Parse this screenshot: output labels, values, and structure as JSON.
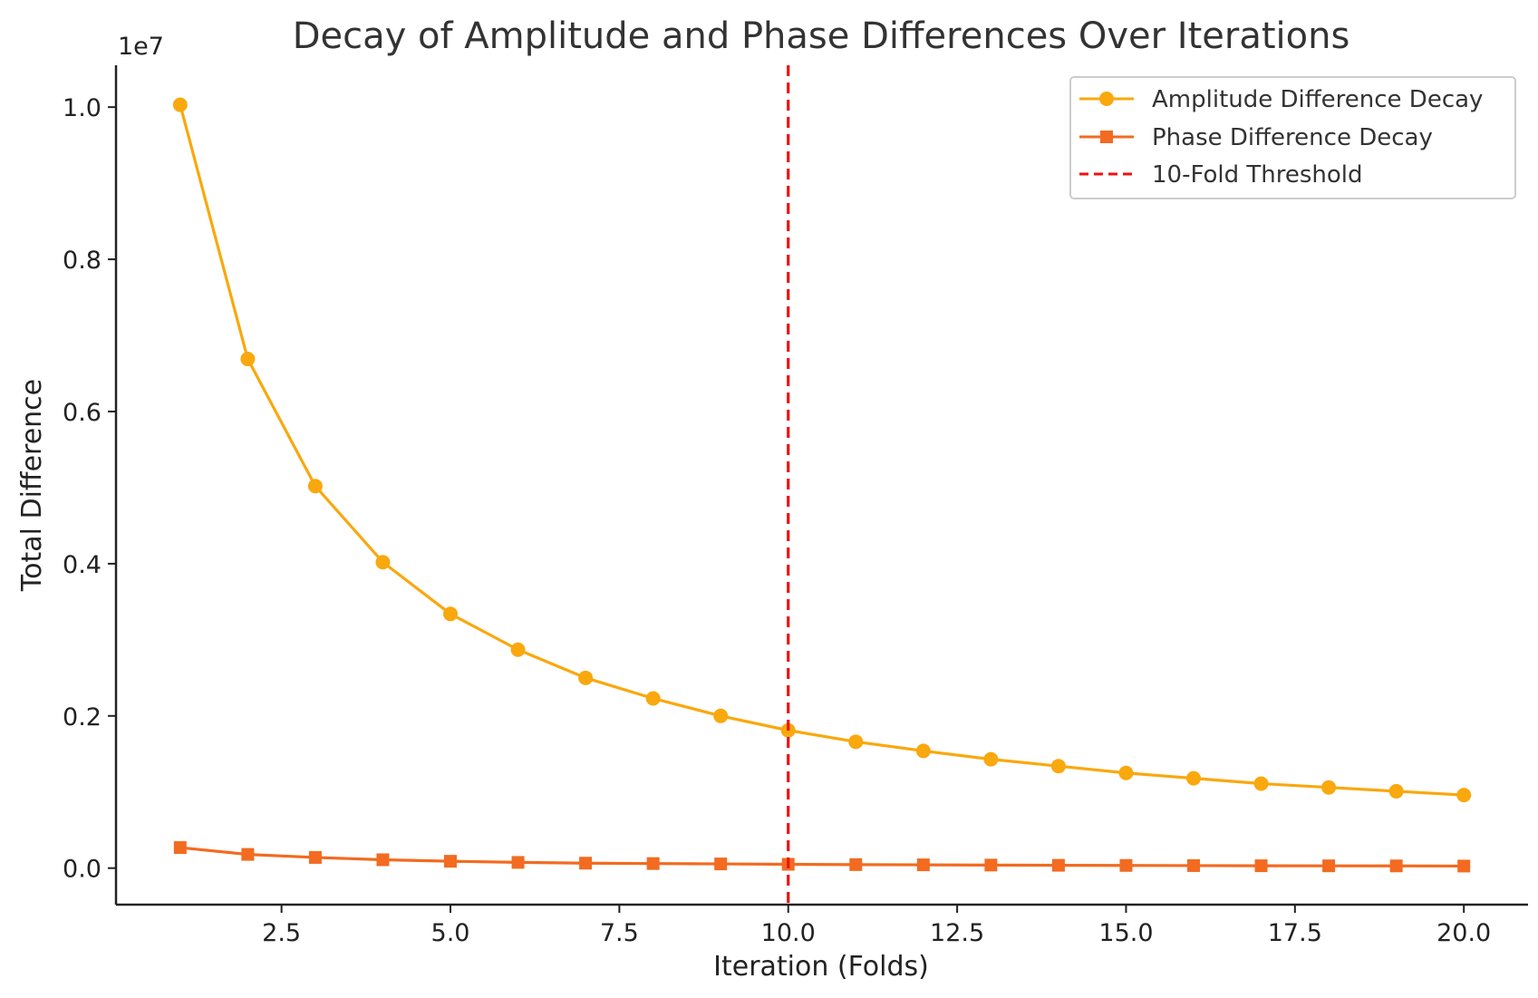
{
  "chart_data": {
    "type": "line",
    "title": "Decay of Amplitude and Phase Differences Over Iterations",
    "xlabel": "Iteration (Folds)",
    "ylabel": "Total Difference",
    "y_scale_note": "1e7",
    "xlim": [
      0.05,
      20.95
    ],
    "ylim": [
      -0.048,
      1.055
    ],
    "x_ticks": [
      2.5,
      5.0,
      7.5,
      10.0,
      12.5,
      15.0,
      17.5,
      20.0
    ],
    "x_tick_labels": [
      "2.5",
      "5.0",
      "7.5",
      "10.0",
      "12.5",
      "15.0",
      "17.5",
      "20.0"
    ],
    "y_ticks": [
      0.0,
      0.2,
      0.4,
      0.6,
      0.8,
      1.0
    ],
    "y_tick_labels": [
      "0.0",
      "0.2",
      "0.4",
      "0.6",
      "0.8",
      "1.0"
    ],
    "x": [
      1,
      2,
      3,
      4,
      5,
      6,
      7,
      8,
      9,
      10,
      11,
      12,
      13,
      14,
      15,
      16,
      17,
      18,
      19,
      20
    ],
    "series": [
      {
        "name": "Amplitude Difference Decay",
        "color": "#f9a80e",
        "marker": "circle",
        "values": [
          1.003,
          0.669,
          0.502,
          0.402,
          0.334,
          0.287,
          0.25,
          0.223,
          0.2,
          0.181,
          0.166,
          0.154,
          0.143,
          0.134,
          0.125,
          0.118,
          0.111,
          0.106,
          0.101,
          0.096
        ]
      },
      {
        "name": "Phase Difference Decay",
        "color": "#f26b21",
        "marker": "square",
        "values": [
          0.027,
          0.018,
          0.014,
          0.011,
          0.009,
          0.0075,
          0.0065,
          0.006,
          0.0055,
          0.005,
          0.0046,
          0.0043,
          0.004,
          0.0037,
          0.0035,
          0.0033,
          0.0031,
          0.003,
          0.0029,
          0.0027
        ]
      }
    ],
    "vline": {
      "name": "10-Fold Threshold",
      "x": 10,
      "color": "#ee1111",
      "style": "dashed"
    },
    "grid": false,
    "legend_position": "top-right"
  }
}
